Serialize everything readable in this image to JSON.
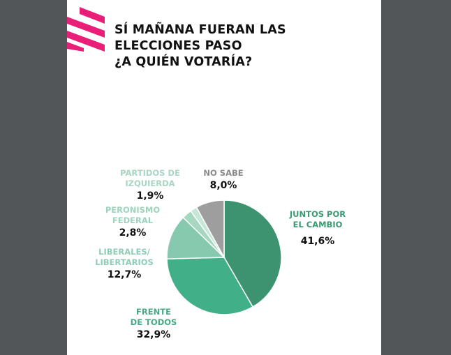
{
  "title_lines": [
    "SÍ MAÑANA FUERAN LAS",
    "ELECCIONES PASO",
    "¿A QUIÉN VOTARÍA?"
  ],
  "colors": {
    "accent": "#e91e78",
    "background": "#525659"
  },
  "chart_data": {
    "type": "pie",
    "title": "SÍ MAÑANA FUERAN LAS ELECCIONES PASO ¿A QUIÉN VOTARÍA?",
    "slices": [
      {
        "label_lines": [
          "JUNTOS POR",
          "EL CAMBIO"
        ],
        "value": 41.6,
        "display": "41,6%",
        "color": "#3d9270",
        "label_color": "#3a9a72"
      },
      {
        "label_lines": [
          "FRENTE",
          "DE TODOS"
        ],
        "value": 32.9,
        "display": "32,9%",
        "color": "#41b089",
        "label_color": "#4aa884"
      },
      {
        "label_lines": [
          "LIBERALES/",
          "LIBERTARIOS"
        ],
        "value": 12.7,
        "display": "12,7%",
        "color": "#86c9ae",
        "label_color": "#8fcdb5"
      },
      {
        "label_lines": [
          "PERONISMO",
          "FEDERAL"
        ],
        "value": 2.8,
        "display": "2,8%",
        "color": "#a6d8c1",
        "label_color": "#9fd3bd"
      },
      {
        "label_lines": [
          "PARTIDOS DE",
          "IZQUIERDA"
        ],
        "value": 1.9,
        "display": "1,9%",
        "color": "#c6e6d7",
        "label_color": "#a9d6c2"
      },
      {
        "label_lines": [
          "NO SABE"
        ],
        "value": 8.0,
        "display": "8,0%",
        "color": "#9e9e9e",
        "label_color": "#8a8a8a"
      }
    ]
  }
}
